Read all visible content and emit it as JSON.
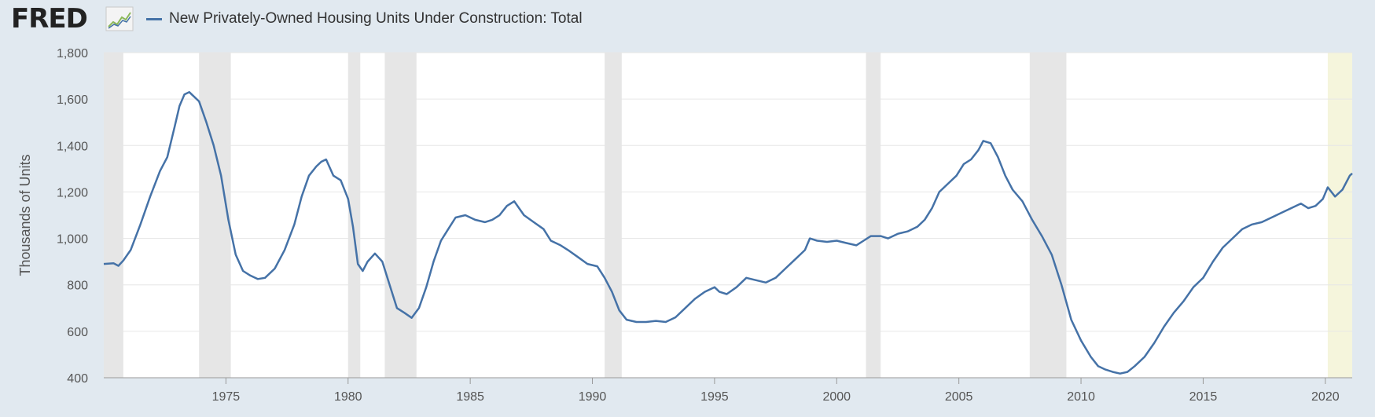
{
  "header": {
    "logo_text": "FRED",
    "series_title": "New Privately-Owned Housing Units Under Construction: Total"
  },
  "chart_data": {
    "type": "line",
    "title": "",
    "xlabel": "",
    "ylabel": "Thousands of Units",
    "xlim": [
      1970.0,
      2021.1
    ],
    "ylim": [
      400,
      1800
    ],
    "y_ticks": [
      400,
      600,
      800,
      1000,
      1200,
      1400,
      1600,
      1800
    ],
    "y_tick_labels": [
      "400",
      "600",
      "800",
      "1,000",
      "1,200",
      "1,400",
      "1,600",
      "1,800"
    ],
    "x_ticks": [
      1975,
      1980,
      1985,
      1990,
      1995,
      2000,
      2005,
      2010,
      2015,
      2020
    ],
    "x_tick_labels": [
      "1975",
      "1980",
      "1985",
      "1990",
      "1995",
      "2000",
      "2005",
      "2010",
      "2015",
      "2020"
    ],
    "grid": true,
    "legend": "top-left",
    "line_color": "#4572a7",
    "recession_color": "#e6e6e6",
    "highlight_color": "#f5f5dc",
    "recessions": [
      [
        1970.0,
        1970.8
      ],
      [
        1973.9,
        1975.2
      ],
      [
        1980.0,
        1980.5
      ],
      [
        1981.5,
        1982.8
      ],
      [
        1990.5,
        1991.2
      ],
      [
        2001.2,
        2001.8
      ],
      [
        2007.9,
        2009.4
      ]
    ],
    "highlights": [
      [
        2020.1,
        2021.1
      ]
    ],
    "series": [
      {
        "name": "New Privately-Owned Housing Units Under Construction: Total",
        "points": [
          [
            1970.0,
            890
          ],
          [
            1970.4,
            893
          ],
          [
            1970.6,
            882
          ],
          [
            1970.8,
            905
          ],
          [
            1971.1,
            950
          ],
          [
            1971.5,
            1060
          ],
          [
            1971.9,
            1180
          ],
          [
            1972.3,
            1290
          ],
          [
            1972.6,
            1350
          ],
          [
            1972.9,
            1480
          ],
          [
            1973.1,
            1570
          ],
          [
            1973.3,
            1620
          ],
          [
            1973.5,
            1630
          ],
          [
            1973.7,
            1610
          ],
          [
            1973.9,
            1590
          ],
          [
            1974.2,
            1500
          ],
          [
            1974.5,
            1400
          ],
          [
            1974.8,
            1270
          ],
          [
            1975.1,
            1080
          ],
          [
            1975.4,
            930
          ],
          [
            1975.7,
            860
          ],
          [
            1976.0,
            840
          ],
          [
            1976.3,
            825
          ],
          [
            1976.6,
            830
          ],
          [
            1977.0,
            870
          ],
          [
            1977.4,
            950
          ],
          [
            1977.8,
            1060
          ],
          [
            1978.1,
            1180
          ],
          [
            1978.4,
            1270
          ],
          [
            1978.7,
            1310
          ],
          [
            1978.9,
            1330
          ],
          [
            1979.1,
            1340
          ],
          [
            1979.4,
            1270
          ],
          [
            1979.7,
            1250
          ],
          [
            1980.0,
            1170
          ],
          [
            1980.2,
            1050
          ],
          [
            1980.4,
            890
          ],
          [
            1980.6,
            860
          ],
          [
            1980.8,
            900
          ],
          [
            1981.1,
            935
          ],
          [
            1981.4,
            900
          ],
          [
            1981.7,
            800
          ],
          [
            1982.0,
            700
          ],
          [
            1982.3,
            680
          ],
          [
            1982.6,
            658
          ],
          [
            1982.9,
            700
          ],
          [
            1983.2,
            790
          ],
          [
            1983.5,
            900
          ],
          [
            1983.8,
            990
          ],
          [
            1984.1,
            1040
          ],
          [
            1984.4,
            1090
          ],
          [
            1984.8,
            1100
          ],
          [
            1985.2,
            1080
          ],
          [
            1985.6,
            1070
          ],
          [
            1985.9,
            1080
          ],
          [
            1986.2,
            1100
          ],
          [
            1986.5,
            1140
          ],
          [
            1986.8,
            1160
          ],
          [
            1987.2,
            1100
          ],
          [
            1987.6,
            1070
          ],
          [
            1988.0,
            1040
          ],
          [
            1988.3,
            990
          ],
          [
            1988.7,
            970
          ],
          [
            1989.0,
            950
          ],
          [
            1989.4,
            920
          ],
          [
            1989.8,
            890
          ],
          [
            1990.2,
            880
          ],
          [
            1990.5,
            830
          ],
          [
            1990.8,
            770
          ],
          [
            1991.1,
            690
          ],
          [
            1991.4,
            650
          ],
          [
            1991.8,
            640
          ],
          [
            1992.2,
            640
          ],
          [
            1992.6,
            645
          ],
          [
            1993.0,
            640
          ],
          [
            1993.4,
            660
          ],
          [
            1993.8,
            700
          ],
          [
            1994.2,
            740
          ],
          [
            1994.6,
            770
          ],
          [
            1995.0,
            790
          ],
          [
            1995.2,
            770
          ],
          [
            1995.5,
            760
          ],
          [
            1995.9,
            790
          ],
          [
            1996.3,
            830
          ],
          [
            1996.7,
            820
          ],
          [
            1997.1,
            810
          ],
          [
            1997.5,
            830
          ],
          [
            1997.9,
            870
          ],
          [
            1998.3,
            910
          ],
          [
            1998.7,
            950
          ],
          [
            1998.9,
            1000
          ],
          [
            1999.2,
            990
          ],
          [
            1999.6,
            985
          ],
          [
            2000.0,
            990
          ],
          [
            2000.4,
            980
          ],
          [
            2000.8,
            970
          ],
          [
            2001.1,
            990
          ],
          [
            2001.4,
            1010
          ],
          [
            2001.8,
            1010
          ],
          [
            2002.1,
            1000
          ],
          [
            2002.5,
            1020
          ],
          [
            2002.9,
            1030
          ],
          [
            2003.3,
            1050
          ],
          [
            2003.6,
            1080
          ],
          [
            2003.9,
            1130
          ],
          [
            2004.2,
            1200
          ],
          [
            2004.6,
            1240
          ],
          [
            2004.9,
            1270
          ],
          [
            2005.2,
            1320
          ],
          [
            2005.5,
            1340
          ],
          [
            2005.8,
            1380
          ],
          [
            2006.0,
            1420
          ],
          [
            2006.3,
            1410
          ],
          [
            2006.6,
            1350
          ],
          [
            2006.9,
            1270
          ],
          [
            2007.2,
            1210
          ],
          [
            2007.6,
            1160
          ],
          [
            2008.0,
            1080
          ],
          [
            2008.4,
            1010
          ],
          [
            2008.8,
            930
          ],
          [
            2009.2,
            800
          ],
          [
            2009.6,
            650
          ],
          [
            2010.0,
            560
          ],
          [
            2010.4,
            490
          ],
          [
            2010.7,
            450
          ],
          [
            2011.0,
            435
          ],
          [
            2011.3,
            425
          ],
          [
            2011.6,
            418
          ],
          [
            2011.9,
            425
          ],
          [
            2012.2,
            450
          ],
          [
            2012.6,
            490
          ],
          [
            2013.0,
            550
          ],
          [
            2013.4,
            620
          ],
          [
            2013.8,
            680
          ],
          [
            2014.2,
            730
          ],
          [
            2014.6,
            790
          ],
          [
            2015.0,
            830
          ],
          [
            2015.4,
            900
          ],
          [
            2015.8,
            960
          ],
          [
            2016.2,
            1000
          ],
          [
            2016.6,
            1040
          ],
          [
            2017.0,
            1060
          ],
          [
            2017.4,
            1070
          ],
          [
            2017.8,
            1090
          ],
          [
            2018.2,
            1110
          ],
          [
            2018.6,
            1130
          ],
          [
            2019.0,
            1150
          ],
          [
            2019.3,
            1130
          ],
          [
            2019.6,
            1140
          ],
          [
            2019.9,
            1170
          ],
          [
            2020.1,
            1220
          ],
          [
            2020.4,
            1180
          ],
          [
            2020.7,
            1210
          ],
          [
            2021.0,
            1270
          ],
          [
            2021.1,
            1280
          ]
        ]
      }
    ]
  }
}
